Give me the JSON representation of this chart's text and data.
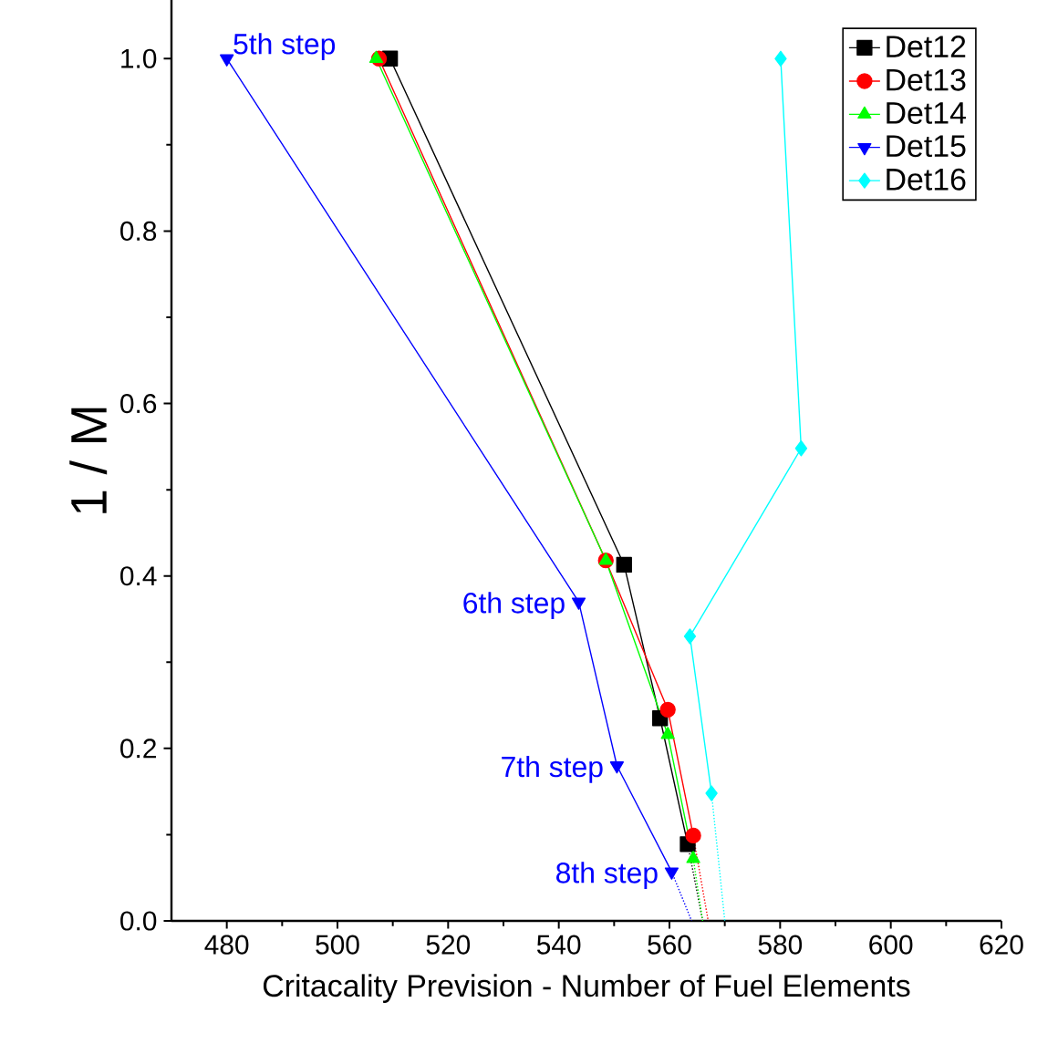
{
  "chart_data": {
    "type": "line",
    "xlabel": "Critacality Prevision - Number of Fuel Elements",
    "ylabel": "1 / M",
    "xlim": [
      470,
      620
    ],
    "ylim": [
      0,
      1.068
    ],
    "xticks": [
      480,
      500,
      520,
      540,
      560,
      580,
      600,
      620
    ],
    "yticks": [
      {
        "value": 0,
        "label": "0.0"
      },
      {
        "value": 0.2,
        "label": "0.2"
      },
      {
        "value": 0.4,
        "label": "0.4"
      },
      {
        "value": 0.6,
        "label": "0.6"
      },
      {
        "value": 0.8,
        "label": "0.8"
      },
      {
        "value": 1.0,
        "label": "1.0"
      }
    ],
    "grid": false,
    "legend": "top right",
    "line_style": "solid",
    "series": [
      {
        "name": "Det12",
        "color": "#000000",
        "marker": "square",
        "x": [
          509.5,
          551.8,
          558.3,
          563.3
        ],
        "values": [
          1.0,
          0.413,
          0.235,
          0.089
        ]
      },
      {
        "name": "Det13",
        "color": "#ff0000",
        "marker": "circle",
        "x": [
          507.5,
          548.5,
          559.7,
          564.3
        ],
        "values": [
          1.0,
          0.418,
          0.245,
          0.099
        ]
      },
      {
        "name": "Det14",
        "color": "#00ff00",
        "marker": "triangle",
        "x": [
          507,
          548.5,
          559.7,
          564.3
        ],
        "values": [
          1.0,
          0.418,
          0.216,
          0.072
        ]
      },
      {
        "name": "Det15",
        "color": "#0000ff",
        "marker": "triangle-down",
        "x": [
          480,
          543.6,
          550.5,
          560.4
        ],
        "values": [
          1.0,
          0.37,
          0.18,
          0.057
        ]
      },
      {
        "name": "Det16",
        "color": "#00ffff",
        "marker": "diamond",
        "x": [
          580.1,
          583.8,
          563.7,
          567.6
        ],
        "values": [
          1.0,
          0.548,
          0.33,
          0.148
        ]
      },
      {
        "color": "#000000",
        "marker": "none",
        "line_style": "dotted",
        "x": [
          563.3,
          566
        ],
        "values": [
          0.089,
          0
        ]
      },
      {
        "color": "#ff0000",
        "marker": "none",
        "line_style": "dotted",
        "x": [
          564.3,
          567
        ],
        "values": [
          0.099,
          0
        ]
      },
      {
        "color": "#00ff00",
        "marker": "none",
        "line_style": "dotted",
        "x": [
          564.3,
          566
        ],
        "values": [
          0.072,
          0
        ]
      },
      {
        "color": "#0000ff",
        "marker": "none",
        "line_style": "dotted",
        "x": [
          560.4,
          564
        ],
        "values": [
          0.057,
          0
        ]
      },
      {
        "color": "#00ffff",
        "marker": "none",
        "line_style": "dotted",
        "x": [
          567.6,
          570
        ],
        "values": [
          0.148,
          0
        ]
      }
    ],
    "annotations": [
      {
        "text": "5th step",
        "x": 480,
        "y": 1.0
      },
      {
        "text": "6th step",
        "x": 543.6,
        "y": 0.37
      },
      {
        "text": "7th step",
        "x": 550.5,
        "y": 0.18
      },
      {
        "text": "8th step",
        "x": 560.4,
        "y": 0.057
      }
    ]
  }
}
